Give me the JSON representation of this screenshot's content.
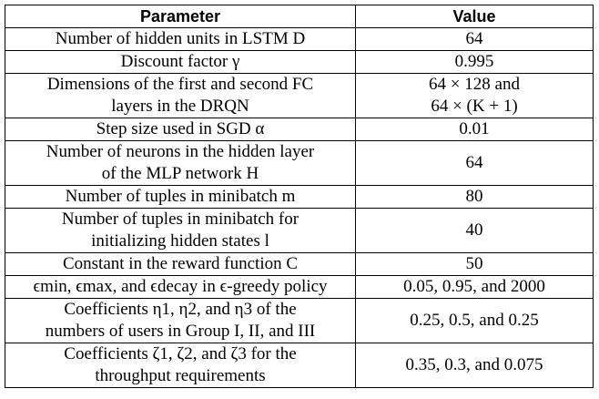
{
  "table": {
    "header": [
      "Parameter",
      "Value"
    ],
    "rows": [
      [
        [
          "Number of hidden units in LSTM D"
        ],
        [
          "64"
        ]
      ],
      [
        [
          "Discount factor γ"
        ],
        [
          "0.995"
        ]
      ],
      [
        [
          "Dimensions of the first and second FC",
          "layers in the DRQN"
        ],
        [
          "64 × 128 and",
          "64 × (K + 1)"
        ]
      ],
      [
        [
          "Step size used in SGD α"
        ],
        [
          "0.01"
        ]
      ],
      [
        [
          "Number of neurons in the hidden layer",
          "of the MLP network H"
        ],
        [
          "64"
        ]
      ],
      [
        [
          "Number of tuples in minibatch m"
        ],
        [
          "80"
        ]
      ],
      [
        [
          "Number of tuples in minibatch for",
          "initializing hidden states l"
        ],
        [
          "40"
        ]
      ],
      [
        [
          "Constant in the reward function C"
        ],
        [
          "50"
        ]
      ],
      [
        [
          "ϵmin, ϵmax, and ϵdecay in ϵ-greedy policy"
        ],
        [
          "0.05, 0.95, and 2000"
        ]
      ],
      [
        [
          "Coefficients η1, η2, and η3 of the",
          "numbers of users in Group I, II, and III"
        ],
        [
          "0.25, 0.5, and 0.25"
        ]
      ],
      [
        [
          "Coefficients ζ1, ζ2, and ζ3 for the",
          "throughput requirements"
        ],
        [
          "0.35, 0.3, and 0.075"
        ]
      ]
    ]
  }
}
